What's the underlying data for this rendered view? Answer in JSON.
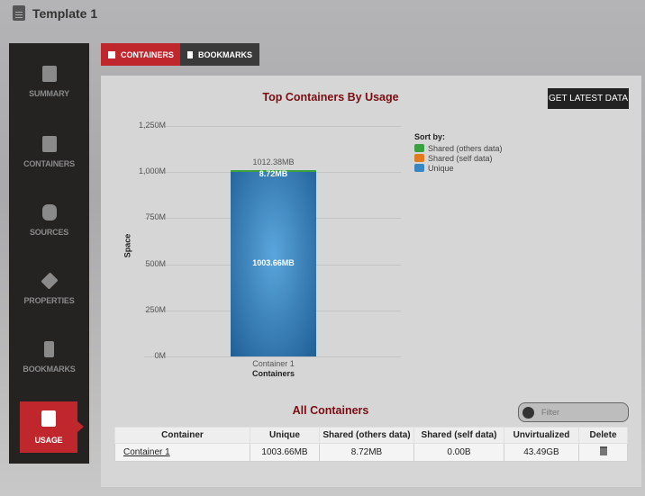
{
  "header": {
    "title": "Template 1",
    "icon": "document-icon"
  },
  "sidebar": {
    "items": [
      {
        "label": "SUMMARY",
        "icon": "document-icon"
      },
      {
        "label": "CONTAINERS",
        "icon": "container-icon"
      },
      {
        "label": "SOURCES",
        "icon": "database-icon"
      },
      {
        "label": "PROPERTIES",
        "icon": "layers-icon"
      },
      {
        "label": "BOOKMARKS",
        "icon": "bookmark-icon"
      },
      {
        "label": "USAGE",
        "icon": "usage-icon",
        "active": true
      }
    ]
  },
  "tabs": [
    {
      "label": "CONTAINERS",
      "active": true,
      "color": "#c0272d"
    },
    {
      "label": "BOOKMARKS",
      "active": false,
      "color": "#3a3a3a"
    }
  ],
  "get_latest_label": "GET LATEST DATA",
  "chart_data": {
    "type": "bar",
    "stacked": true,
    "title": "Top Containers By Usage",
    "xlabel": "Containers",
    "ylabel": "Space",
    "categories": [
      "Container 1"
    ],
    "yticks": [
      "0M",
      "250M",
      "500M",
      "750M",
      "1,000M",
      "1,250M"
    ],
    "ylim": [
      0,
      1250
    ],
    "legend_title": "Sort by:",
    "legend_position": "right",
    "series": [
      {
        "name": "Unique",
        "values": [
          1003.66
        ],
        "color": "#3a86c0",
        "label": "1003.66MB"
      },
      {
        "name": "Shared (self data)",
        "values": [
          0
        ],
        "color": "#e07b20"
      },
      {
        "name": "Shared (others data)",
        "values": [
          8.72
        ],
        "color": "#3aa040",
        "label": "8.72MB"
      }
    ],
    "legend_order": [
      "Shared (others data)",
      "Shared (self data)",
      "Unique"
    ],
    "total_labels": [
      "1012.38MB"
    ],
    "grid": true
  },
  "all_containers": {
    "title": "All Containers",
    "filter_placeholder": "Filter",
    "columns": [
      "Container",
      "Unique",
      "Shared (others data)",
      "Shared (self data)",
      "Unvirtualized",
      "Delete"
    ],
    "rows": [
      {
        "name": "Container 1",
        "unique": "1003.66MB",
        "shared_others": "8.72MB",
        "shared_self": "0.00B",
        "unvirtualized": "43.49GB"
      }
    ]
  }
}
